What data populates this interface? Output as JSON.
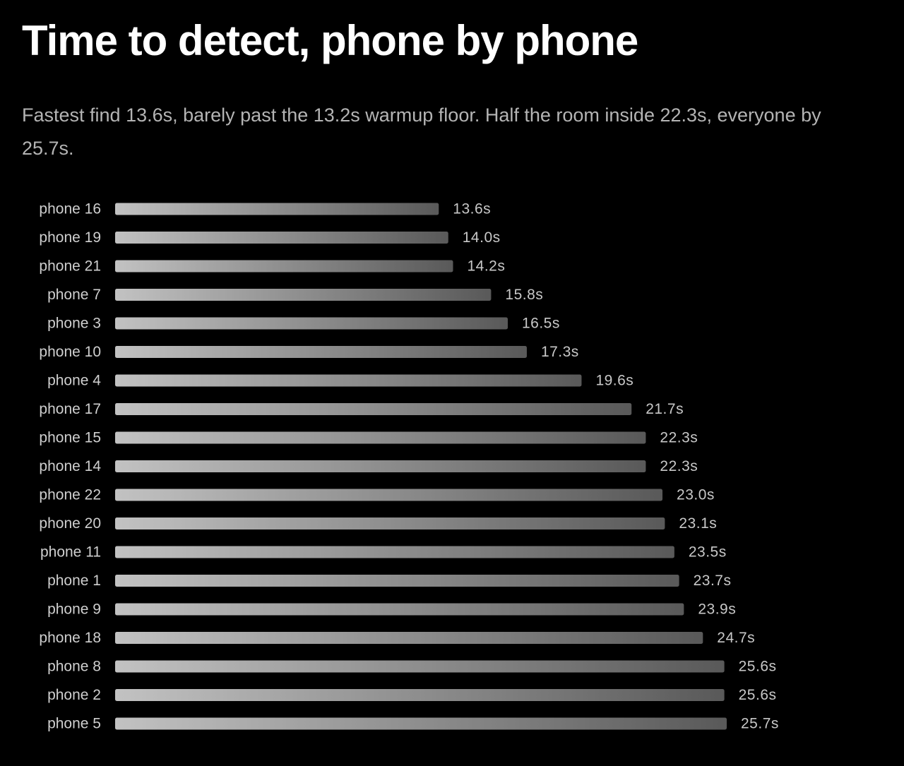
{
  "chart_data": {
    "type": "bar",
    "orientation": "horizontal",
    "title": "Time to detect, phone by phone",
    "subtitle": "Fastest find 13.6s, barely past the 13.2s warmup floor. Half the room inside 22.3s, everyone by 25.7s.",
    "xlabel": "",
    "ylabel": "",
    "unit": "s",
    "grid": false,
    "legend": "none",
    "xlim": [
      0,
      25.7
    ],
    "categories": [
      "phone 16",
      "phone 19",
      "phone 21",
      "phone 7",
      "phone 3",
      "phone 10",
      "phone 4",
      "phone 17",
      "phone 15",
      "phone 14",
      "phone 22",
      "phone 20",
      "phone 11",
      "phone 1",
      "phone 9",
      "phone 18",
      "phone 8",
      "phone 2",
      "phone 5"
    ],
    "values": [
      13.6,
      14.0,
      14.2,
      15.8,
      16.5,
      17.3,
      19.6,
      21.7,
      22.3,
      22.3,
      23.0,
      23.1,
      23.5,
      23.7,
      23.9,
      24.7,
      25.6,
      25.6,
      25.7
    ],
    "value_labels": [
      "13.6s",
      "14.0s",
      "14.2s",
      "15.8s",
      "16.5s",
      "17.3s",
      "19.6s",
      "21.7s",
      "22.3s",
      "22.3s",
      "23.0s",
      "23.1s",
      "23.5s",
      "23.7s",
      "23.9s",
      "24.7s",
      "25.6s",
      "25.6s",
      "25.7s"
    ],
    "colors": {
      "background": "#000000",
      "bar_start": "#c2c2c2",
      "bar_end": "#595959",
      "label": "#cfcfcf",
      "value_label": "#c8c8c8"
    }
  }
}
